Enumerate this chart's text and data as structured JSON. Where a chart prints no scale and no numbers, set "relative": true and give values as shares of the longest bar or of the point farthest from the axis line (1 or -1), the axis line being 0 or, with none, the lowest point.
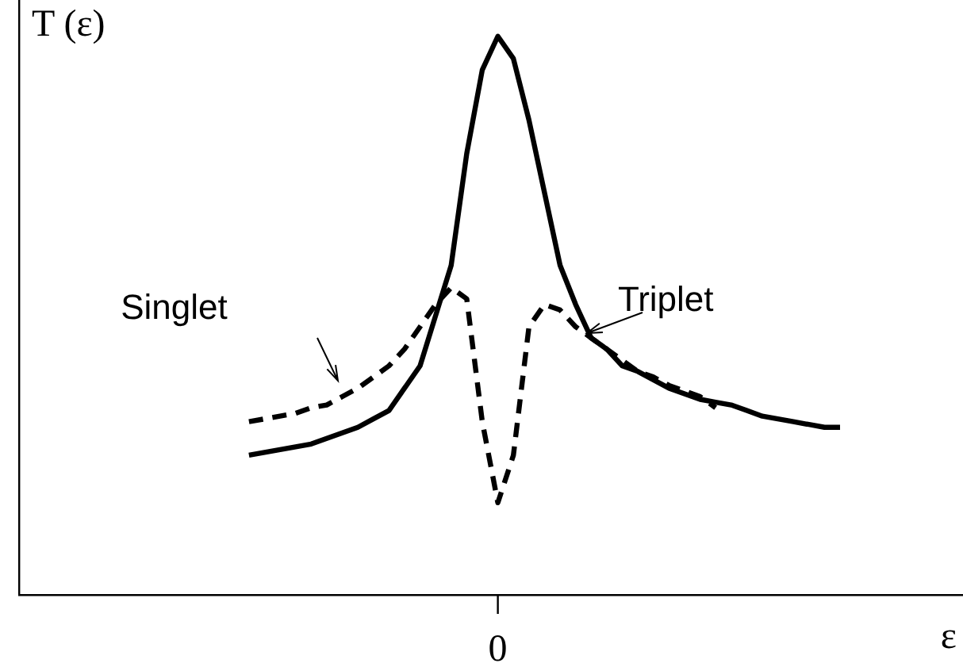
{
  "chart_data": {
    "type": "line",
    "relative": true,
    "xlabel": "ε",
    "ylabel": "T (ε)",
    "annotations": [
      "0"
    ],
    "legend": false,
    "marker": "none",
    "categories": [
      null,
      null,
      null,
      null,
      null,
      null,
      null,
      null,
      null,
      null,
      null,
      null,
      null,
      null,
      null,
      null,
      null,
      null,
      null,
      null,
      null,
      null,
      null,
      null,
      null,
      null,
      null,
      null,
      null,
      null,
      null,
      null,
      null,
      null,
      null,
      null,
      null,
      null,
      null
    ],
    "series": [
      {
        "name": "Triplet",
        "color": "#000000",
        "line_style": "solid",
        "values": [
          0.25,
          0.255,
          0.26,
          0.265,
          0.27,
          0.28,
          0.29,
          0.3,
          0.315,
          0.33,
          0.37,
          0.41,
          0.5,
          0.59,
          0.79,
          0.94,
          1,
          0.96,
          0.85,
          0.72,
          0.59,
          0.52,
          0.46,
          0.44,
          0.41,
          0.4,
          0.385,
          0.37,
          0.36,
          0.35,
          0.345,
          0.34,
          0.33,
          0.32,
          0.315,
          0.31,
          0.305,
          0.3,
          0.3
        ]
      },
      {
        "name": "Singlet",
        "color": "#000000",
        "line_style": "dashed",
        "values": [
          0.31,
          0.315,
          0.32,
          0.325,
          0.335,
          0.34,
          0.355,
          0.37,
          0.39,
          0.41,
          0.44,
          0.48,
          0.52,
          0.55,
          0.53,
          0.31,
          0.165,
          0.25,
          0.48,
          0.52,
          0.51,
          0.48,
          0.46,
          0.44,
          0.42,
          0.4,
          0.39,
          0.375,
          0.365,
          0.355,
          0.335,
          null,
          null,
          null,
          null,
          null,
          null,
          null,
          null
        ]
      }
    ]
  }
}
